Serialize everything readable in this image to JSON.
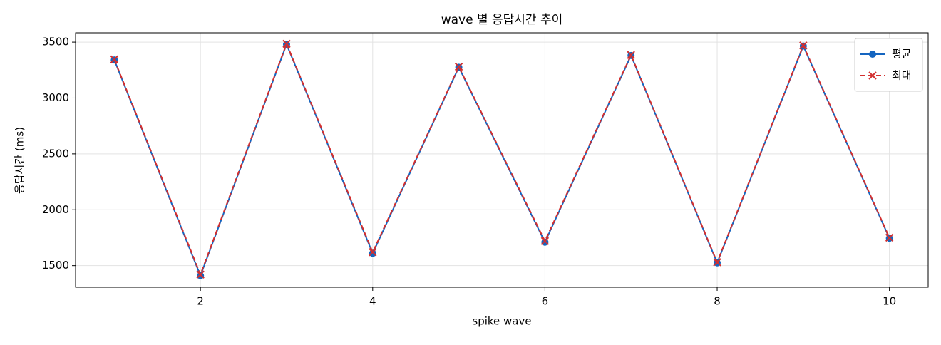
{
  "chart_data": {
    "type": "line",
    "title": "wave 별 응답시간 추이",
    "x_label": "spike wave",
    "y_label": "응답시간 (ms)",
    "x": [
      1,
      2,
      3,
      4,
      5,
      6,
      7,
      8,
      9,
      10
    ],
    "series": [
      {
        "name": "평균",
        "color": "#1565c0",
        "marker": "circle",
        "dash": "solid",
        "values": [
          3340,
          1410,
          3480,
          1610,
          3275,
          1710,
          3380,
          1525,
          3465,
          1745
        ]
      },
      {
        "name": "최대",
        "color": "#d32f2f",
        "marker": "x",
        "dash": "dashed",
        "values": [
          3345,
          1420,
          3485,
          1620,
          3280,
          1720,
          3385,
          1530,
          3470,
          1750
        ]
      }
    ],
    "xlim": [
      0.55,
      10.45
    ],
    "xticks": [
      2,
      4,
      6,
      8,
      10
    ],
    "ylim": [
      1306.5,
      3583.5
    ],
    "yticks": [
      1500,
      2000,
      2500,
      3000,
      3500
    ],
    "grid": true,
    "legend": "upper right"
  }
}
